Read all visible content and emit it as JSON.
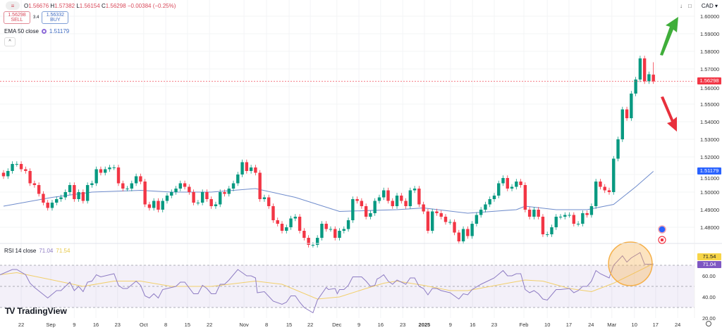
{
  "legend": {
    "open_label": "O",
    "open": "1.56676",
    "high_label": "H",
    "high": "1.57382",
    "low_label": "L",
    "low": "1.56154",
    "close_label": "C",
    "close": "1.56298",
    "change": "−0.00384 (−0.25%)"
  },
  "trade": {
    "sell_price": "1.56298",
    "sell_label": "SELL",
    "spread": "3.4",
    "buy_price": "1.56332",
    "buy_label": "BUY"
  },
  "ema": {
    "label": "EMA 50 close",
    "value": "1.51179"
  },
  "rsi_legend": {
    "label": "RSI 14 close",
    "rsi": "71.04",
    "ma": "71.54"
  },
  "toolbar": {
    "currency": "CAD"
  },
  "brand": "TradingView",
  "colors": {
    "up": "#089981",
    "down": "#f23645",
    "ema": "#6f8ccc",
    "rsi": "#8e7cc3",
    "rsi_ma": "#f2cf6b",
    "arrow_up": "#3fae3a",
    "arrow_down": "#e8303c",
    "highlight": "#f5b04a"
  },
  "chart_data": [
    {
      "type": "candlestick",
      "title": "",
      "price_axis": {
        "ticks": [
          "1.60000",
          "1.59000",
          "1.58000",
          "1.57000",
          "1.56000",
          "1.55000",
          "1.54000",
          "1.53000",
          "1.52000",
          "1.51000",
          "1.50000",
          "1.49000",
          "1.48000"
        ],
        "ylim": [
          1.468,
          1.6092
        ]
      },
      "last_price": "1.56298",
      "last_candle": {
        "open": 1.56676,
        "high": 1.57382,
        "low": 1.56154,
        "close": 1.56298
      },
      "closes": [
        1.509,
        1.512,
        1.516,
        1.516,
        1.513,
        1.512,
        1.505,
        1.504,
        1.499,
        1.494,
        1.491,
        1.494,
        1.496,
        1.497,
        1.5,
        1.504,
        1.496,
        1.5,
        1.495,
        1.504,
        1.505,
        1.513,
        1.511,
        1.513,
        1.514,
        1.514,
        1.505,
        1.502,
        1.502,
        1.505,
        1.509,
        1.506,
        1.493,
        1.491,
        1.495,
        1.49,
        1.495,
        1.498,
        1.5,
        1.502,
        1.505,
        1.503,
        1.5,
        1.494,
        1.494,
        1.5,
        1.496,
        1.492,
        1.493,
        1.5,
        1.499,
        1.502,
        1.505,
        1.51,
        1.517,
        1.512,
        1.514,
        1.511,
        1.496,
        1.497,
        1.492,
        1.484,
        1.482,
        1.478,
        1.48,
        1.485,
        1.486,
        1.478,
        1.474,
        1.47,
        1.47,
        1.474,
        1.482,
        1.479,
        1.479,
        1.474,
        1.478,
        1.479,
        1.484,
        1.496,
        1.495,
        1.492,
        1.486,
        1.488,
        1.495,
        1.497,
        1.501,
        1.495,
        1.492,
        1.498,
        1.495,
        1.492,
        1.501,
        1.502,
        1.493,
        1.489,
        1.478,
        1.489,
        1.488,
        1.486,
        1.483,
        1.483,
        1.477,
        1.472,
        1.479,
        1.475,
        1.482,
        1.487,
        1.49,
        1.493,
        1.496,
        1.498,
        1.505,
        1.508,
        1.502,
        1.503,
        1.506,
        1.504,
        1.49,
        1.486,
        1.49,
        1.486,
        1.476,
        1.476,
        1.48,
        1.486,
        1.486,
        1.487,
        1.487,
        1.482,
        1.482,
        1.488,
        1.487,
        1.492,
        1.506,
        1.503,
        1.501,
        1.5,
        1.519,
        1.53,
        1.547,
        1.542,
        1.556,
        1.564,
        1.576,
        1.563,
        1.567,
        1.56298
      ],
      "ema50": {
        "name": "EMA 50 close",
        "last": 1.51179,
        "points": [
          [
            0,
            1.492
          ],
          [
            11,
            1.497
          ],
          [
            20,
            1.5
          ],
          [
            31,
            1.501
          ],
          [
            38,
            1.5
          ],
          [
            47,
            1.5
          ],
          [
            57,
            1.502
          ],
          [
            66,
            1.497
          ],
          [
            76,
            1.489
          ],
          [
            89,
            1.49
          ],
          [
            95,
            1.491
          ],
          [
            105,
            1.488
          ],
          [
            116,
            1.49
          ],
          [
            118,
            1.492
          ],
          [
            125,
            1.49
          ],
          [
            132,
            1.49
          ],
          [
            138,
            1.493
          ],
          [
            143,
            1.503
          ],
          [
            147,
            1.51179
          ]
        ]
      },
      "x_ticks": [
        {
          "label": "22",
          "i": 4
        },
        {
          "label": "Sep",
          "i": 10.7
        },
        {
          "label": "9",
          "i": 16
        },
        {
          "label": "16",
          "i": 20.9
        },
        {
          "label": "23",
          "i": 25.8
        },
        {
          "label": "Oct",
          "i": 31.7
        },
        {
          "label": "8",
          "i": 36.7
        },
        {
          "label": "15",
          "i": 41.6
        },
        {
          "label": "22",
          "i": 46.6
        },
        {
          "label": "Nov",
          "i": 54.4
        },
        {
          "label": "8",
          "i": 59.5
        },
        {
          "label": "15",
          "i": 64.6
        },
        {
          "label": "22",
          "i": 69.4
        },
        {
          "label": "Dec",
          "i": 75.4
        },
        {
          "label": "9",
          "i": 80.4
        },
        {
          "label": "16",
          "i": 85.3
        },
        {
          "label": "23",
          "i": 90.3
        },
        {
          "label": "2025",
          "i": 95.2
        },
        {
          "label": "9",
          "i": 101.1
        },
        {
          "label": "16",
          "i": 106.1
        },
        {
          "label": "23",
          "i": 111
        },
        {
          "label": "Feb",
          "i": 117.7
        },
        {
          "label": "10",
          "i": 123
        },
        {
          "label": "17",
          "i": 127.9
        },
        {
          "label": "24",
          "i": 132.9
        },
        {
          "label": "Mar",
          "i": 137.6
        },
        {
          "label": "10",
          "i": 142.7
        },
        {
          "label": "17",
          "i": 147.5
        },
        {
          "label": "24",
          "i": 152.5
        }
      ]
    },
    {
      "type": "line",
      "title": "RSI 14 close",
      "y_ticks": [
        "60.00",
        "40.00",
        "20.00"
      ],
      "bands": [
        70,
        50,
        30
      ],
      "ylim": [
        20,
        80
      ],
      "series": [
        {
          "name": "RSI",
          "last": 71.04,
          "points": [
            [
              -1,
              61
            ],
            [
              2,
              66
            ],
            [
              3,
              66
            ],
            [
              5,
              61
            ],
            [
              6,
              53
            ],
            [
              7,
              49
            ],
            [
              10,
              39
            ],
            [
              12,
              46
            ],
            [
              13,
              46
            ],
            [
              15,
              54
            ],
            [
              16,
              46
            ],
            [
              17,
              50
            ],
            [
              18,
              45
            ],
            [
              19,
              54
            ],
            [
              20,
              55
            ],
            [
              21,
              61
            ],
            [
              22,
              59
            ],
            [
              25,
              62
            ],
            [
              26,
              51
            ],
            [
              27,
              48
            ],
            [
              28,
              48
            ],
            [
              30,
              55
            ],
            [
              31,
              51
            ],
            [
              32,
              41
            ],
            [
              33,
              39
            ],
            [
              34,
              43
            ],
            [
              35,
              39
            ],
            [
              36,
              47
            ],
            [
              39,
              50
            ],
            [
              40,
              54
            ],
            [
              41,
              54
            ],
            [
              43,
              43
            ],
            [
              44,
              43
            ],
            [
              45,
              51
            ],
            [
              46,
              48
            ],
            [
              47,
              43
            ],
            [
              48,
              43
            ],
            [
              49,
              52
            ],
            [
              50,
              52
            ],
            [
              51,
              56
            ],
            [
              53,
              66
            ],
            [
              55,
              60
            ],
            [
              56,
              60
            ],
            [
              57,
              58
            ],
            [
              57.4,
              44
            ],
            [
              59,
              45
            ],
            [
              61,
              36
            ],
            [
              63,
              33
            ],
            [
              64,
              35
            ],
            [
              65,
              41
            ],
            [
              66,
              41
            ],
            [
              67,
              35
            ],
            [
              68,
              30
            ],
            [
              70,
              25
            ],
            [
              71,
              37
            ],
            [
              73,
              49
            ],
            [
              73.5,
              47
            ],
            [
              75,
              48
            ],
            [
              75.5,
              43
            ],
            [
              76,
              47
            ],
            [
              77,
              47
            ],
            [
              78,
              51
            ],
            [
              79,
              59
            ],
            [
              81,
              59
            ],
            [
              82,
              55
            ],
            [
              83,
              50
            ],
            [
              84,
              51
            ],
            [
              84.5,
              57
            ],
            [
              85,
              58
            ],
            [
              86,
              61
            ],
            [
              87,
              55
            ],
            [
              88,
              52
            ],
            [
              89,
              56
            ],
            [
              91,
              52
            ],
            [
              92,
              58
            ],
            [
              93,
              58
            ],
            [
              94,
              50
            ],
            [
              95,
              48
            ],
            [
              96,
              42
            ],
            [
              97,
              48
            ],
            [
              98,
              48
            ],
            [
              99,
              46
            ],
            [
              101,
              44
            ],
            [
              102,
              41
            ],
            [
              103,
              38
            ],
            [
              104,
              43
            ],
            [
              105,
              42
            ],
            [
              106,
              47
            ],
            [
              108,
              52
            ],
            [
              110,
              56
            ],
            [
              111,
              58
            ],
            [
              113,
              65
            ],
            [
              114,
              60
            ],
            [
              115,
              60
            ],
            [
              116,
              62
            ],
            [
              117,
              62
            ],
            [
              118,
              47
            ],
            [
              119,
              44
            ],
            [
              120,
              46
            ],
            [
              121,
              43
            ],
            [
              122,
              38
            ],
            [
              123,
              37
            ],
            [
              125,
              47
            ],
            [
              126,
              47
            ],
            [
              128,
              48
            ],
            [
              129,
              44
            ],
            [
              130,
              46
            ],
            [
              131,
              50
            ],
            [
              132,
              50
            ],
            [
              133,
              55
            ],
            [
              134,
              65
            ],
            [
              135,
              62
            ],
            [
              137,
              58
            ],
            [
              138,
              70
            ],
            [
              140,
              79
            ],
            [
              141,
              73
            ],
            [
              142,
              77
            ],
            [
              144,
              82
            ],
            [
              145,
              71
            ],
            [
              146,
              71
            ],
            [
              147,
              71.04
            ]
          ]
        },
        {
          "name": "MA",
          "last": 71.54,
          "points": [
            [
              -1,
              61
            ],
            [
              3,
              63
            ],
            [
              10,
              57
            ],
            [
              18,
              50
            ],
            [
              25,
              55
            ],
            [
              31,
              55
            ],
            [
              38,
              50
            ],
            [
              47,
              50
            ],
            [
              57,
              55
            ],
            [
              63,
              52
            ],
            [
              71,
              38
            ],
            [
              76,
              40
            ],
            [
              82,
              48
            ],
            [
              86,
              53
            ],
            [
              89,
              55
            ],
            [
              95,
              51
            ],
            [
              101,
              46
            ],
            [
              105,
              46
            ],
            [
              114,
              53
            ],
            [
              118,
              56
            ],
            [
              122,
              55
            ],
            [
              128,
              48
            ],
            [
              133,
              45
            ],
            [
              138,
              53
            ],
            [
              147,
              71.54
            ]
          ]
        }
      ]
    }
  ]
}
